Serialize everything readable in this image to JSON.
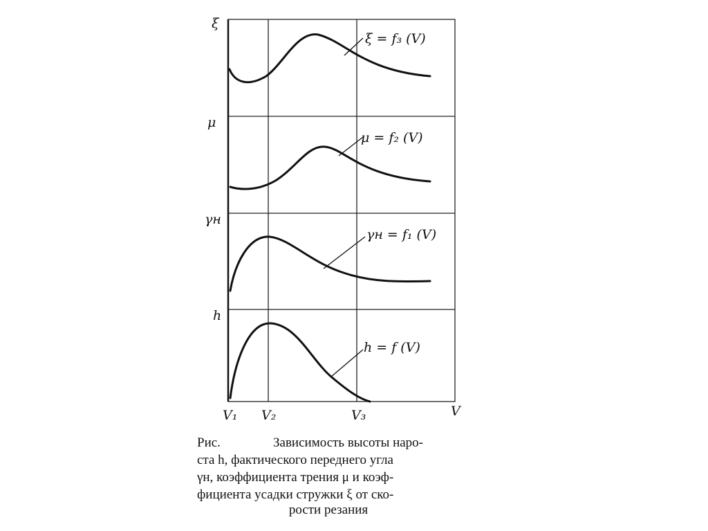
{
  "panels": [
    {
      "y_label": "ξ",
      "curve_label": "ξ = f₃ (V)"
    },
    {
      "y_label": "μ",
      "curve_label": "μ = f₂ (V)"
    },
    {
      "y_label": "γн",
      "curve_label": "γн = f₁ (V)"
    },
    {
      "y_label": "h",
      "curve_label": "h = f (V)"
    }
  ],
  "x_labels": [
    "V₁",
    "V₂",
    "V₃",
    "V"
  ],
  "caption": {
    "label": "Рис.",
    "lines": [
      "Зависимость высоты наро-",
      "ста h, фактического переднего угла",
      "γн, коэффициента трения μ и коэф-",
      "фициента усадки стружки ξ от ско-",
      "рости резания"
    ]
  }
}
